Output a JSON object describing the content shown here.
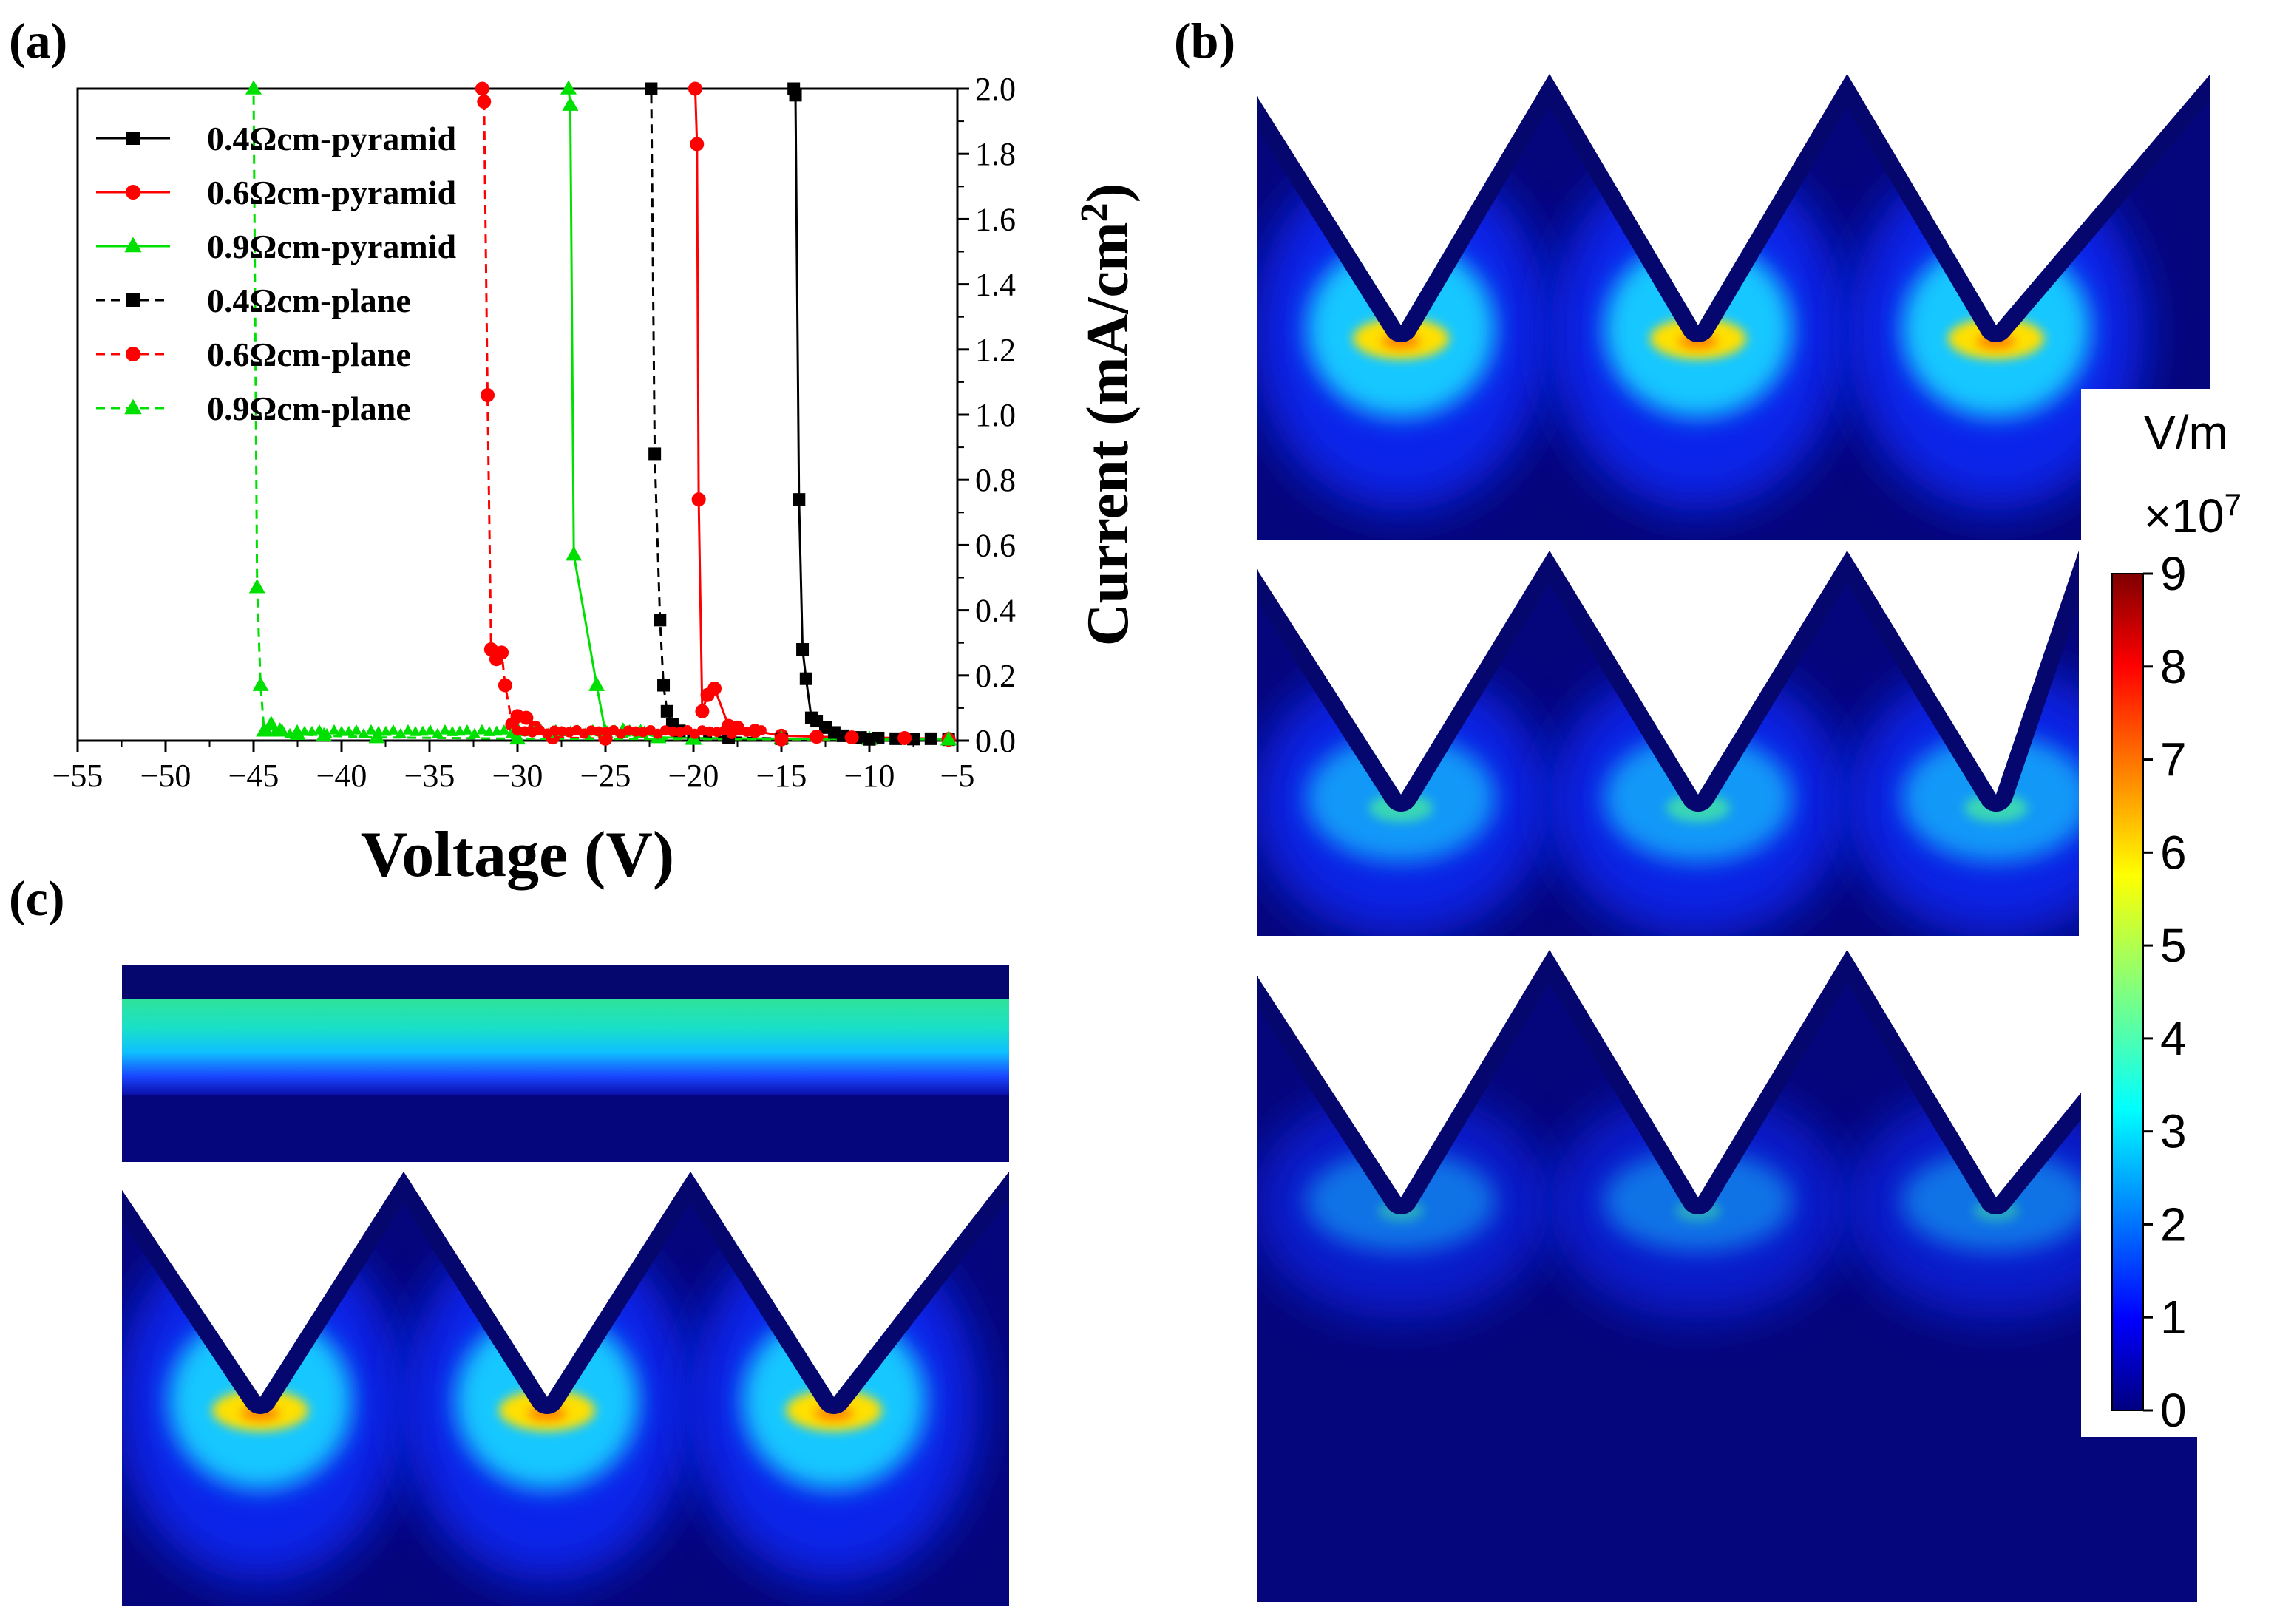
{
  "panel_labels": {
    "a": "(a)",
    "b": "(b)",
    "c": "(c)"
  },
  "colorbar": {
    "unit": "V/m",
    "multiplier_base": "×10",
    "multiplier_exp": "7",
    "ticks": [
      "0",
      "1",
      "2",
      "3",
      "4",
      "5",
      "6",
      "7",
      "8",
      "9"
    ],
    "min": 0,
    "max": 9
  },
  "field_maps": {
    "b": [
      {
        "id": "b-top",
        "peak_level": 1.0
      },
      {
        "id": "b-middle",
        "peak_level": 0.6
      },
      {
        "id": "b-bottom",
        "peak_level": 0.38
      }
    ],
    "c": [
      {
        "id": "c-plane",
        "peak_level": 0.5
      },
      {
        "id": "c-pyramid",
        "peak_level": 1.0
      }
    ]
  },
  "chart_data": {
    "type": "line",
    "title": "",
    "xlabel": "Voltage (V)",
    "ylabel_main": "Current (mA/cm",
    "ylabel_sup": "2",
    "ylabel_end": ")",
    "xlim": [
      -55,
      -5
    ],
    "ylim": [
      0,
      2.0
    ],
    "x_ticks": [
      -55,
      -50,
      -45,
      -40,
      -35,
      -30,
      -25,
      -20,
      -15,
      -10,
      -5
    ],
    "x_tick_labels": [
      "−55",
      "−50",
      "−45",
      "−40",
      "−35",
      "−30",
      "−25",
      "−20",
      "−15",
      "−10",
      "−5"
    ],
    "y_ticks": [
      0.0,
      0.2,
      0.4,
      0.6,
      0.8,
      1.0,
      1.2,
      1.4,
      1.6,
      1.8,
      2.0
    ],
    "y_tick_labels": [
      "0.0",
      "0.2",
      "0.4",
      "0.6",
      "0.8",
      "1.0",
      "1.2",
      "1.4",
      "1.6",
      "1.8",
      "2.0"
    ],
    "y_axis_side": "right",
    "legend_position": "top-left",
    "series": [
      {
        "name": "0.4Ωcm-pyramid",
        "color": "#000000",
        "marker": "square",
        "dash": "solid",
        "points": [
          [
            -5.5,
            0.005
          ],
          [
            -6.5,
            0.006
          ],
          [
            -7.5,
            0.005
          ],
          [
            -8.5,
            0.006
          ],
          [
            -9.5,
            0.008
          ],
          [
            -10.5,
            0.01
          ],
          [
            -11.5,
            0.015
          ],
          [
            -12,
            0.025
          ],
          [
            -12.5,
            0.04
          ],
          [
            -13,
            0.06
          ],
          [
            -13.3,
            0.07
          ],
          [
            -13.6,
            0.19
          ],
          [
            -13.8,
            0.28
          ],
          [
            -14.0,
            0.74
          ],
          [
            -14.2,
            1.98
          ],
          [
            -14.3,
            2.0
          ]
        ]
      },
      {
        "name": "0.6Ωcm-pyramid",
        "color": "#ff0000",
        "marker": "circle",
        "dash": "solid",
        "points": [
          [
            -5.5,
            0.005
          ],
          [
            -8,
            0.008
          ],
          [
            -11,
            0.01
          ],
          [
            -13,
            0.012
          ],
          [
            -15,
            0.015
          ],
          [
            -16.5,
            0.03
          ],
          [
            -17.5,
            0.04
          ],
          [
            -18,
            0.045
          ],
          [
            -18.8,
            0.16
          ],
          [
            -19.2,
            0.14
          ],
          [
            -19.5,
            0.09
          ],
          [
            -19.7,
            0.74
          ],
          [
            -19.8,
            1.83
          ],
          [
            -19.9,
            2.0
          ]
        ]
      },
      {
        "name": "0.9Ωcm-pyramid",
        "color": "#00e000",
        "marker": "triangle",
        "dash": "solid",
        "points": [
          [
            -5.5,
            0.004
          ],
          [
            -10,
            0.005
          ],
          [
            -15,
            0.006
          ],
          [
            -20,
            0.008
          ],
          [
            -22,
            0.01
          ],
          [
            -23,
            0.025
          ],
          [
            -24,
            0.03
          ],
          [
            -25,
            0.025
          ],
          [
            -25.5,
            0.17
          ],
          [
            -26.8,
            0.57
          ],
          [
            -27.0,
            1.95
          ],
          [
            -27.1,
            2.0
          ]
        ]
      },
      {
        "name": "0.4Ωcm-plane",
        "color": "#000000",
        "marker": "square",
        "dash": "dashed",
        "points": [
          [
            -5.5,
            0.003
          ],
          [
            -10,
            0.004
          ],
          [
            -15,
            0.006
          ],
          [
            -18,
            0.01
          ],
          [
            -20,
            0.015
          ],
          [
            -20.8,
            0.03
          ],
          [
            -21.2,
            0.05
          ],
          [
            -21.5,
            0.09
          ],
          [
            -21.7,
            0.17
          ],
          [
            -21.9,
            0.37
          ],
          [
            -22.2,
            0.88
          ],
          [
            -22.4,
            2.0
          ]
        ]
      },
      {
        "name": "0.6Ωcm-plane",
        "color": "#ff0000",
        "marker": "circle",
        "dash": "dashed",
        "points": [
          [
            -5.5,
            0.003
          ],
          [
            -15,
            0.004
          ],
          [
            -25,
            0.006
          ],
          [
            -28,
            0.01
          ],
          [
            -29,
            0.04
          ],
          [
            -29.5,
            0.07
          ],
          [
            -30,
            0.075
          ],
          [
            -30.3,
            0.05
          ],
          [
            -30.7,
            0.17
          ],
          [
            -30.9,
            0.27
          ],
          [
            -31.2,
            0.25
          ],
          [
            -31.5,
            0.28
          ],
          [
            -31.7,
            1.06
          ],
          [
            -31.9,
            1.96
          ],
          [
            -32.0,
            2.0
          ]
        ]
      },
      {
        "name": "0.9Ωcm-plane",
        "color": "#00e000",
        "marker": "triangle",
        "dash": "dashed",
        "points": [
          [
            -5.5,
            0.003
          ],
          [
            -20,
            0.005
          ],
          [
            -30,
            0.006
          ],
          [
            -38,
            0.01
          ],
          [
            -41,
            0.015
          ],
          [
            -42.5,
            0.02
          ],
          [
            -43.5,
            0.03
          ],
          [
            -44.0,
            0.05
          ],
          [
            -44.4,
            0.03
          ],
          [
            -44.6,
            0.17
          ],
          [
            -44.8,
            0.47
          ],
          [
            -45.0,
            2.0
          ]
        ]
      }
    ]
  }
}
